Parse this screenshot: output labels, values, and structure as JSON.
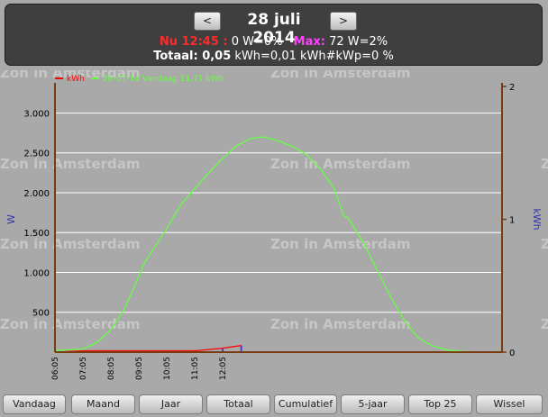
{
  "header": {
    "prev_label": "<",
    "next_label": ">",
    "date": "28 juli 2014",
    "now_label": "Nu 12:45 :",
    "now_value": "0 W=0%",
    "max_label": "Max:",
    "max_value": "72 W=2%",
    "total_label": "Totaal: 0,05",
    "total_value": "kWh=0,01 kWh#kWp=0 %"
  },
  "watermark": "Zon in Amsterdam",
  "colors": {
    "kwh_line": "#ff0000",
    "power_line": "#66ff44",
    "axis": "#7a3b10",
    "axis_label": "#3333aa",
    "gridline": "#ffffff",
    "kwh_bars": "#4444cc"
  },
  "chart_data": {
    "type": "line",
    "ylabel": "W",
    "y2label": "kWh",
    "x_ticks": [
      "06:05",
      "07:05",
      "08:05",
      "09:05",
      "10:05",
      "11:05",
      "12:05"
    ],
    "y_ticks": [
      "500",
      "1.000",
      "1.500",
      "2.000",
      "2.500",
      "3.000"
    ],
    "y2_ticks": [
      "0",
      "1",
      "2"
    ],
    "ylim": [
      0,
      3333
    ],
    "y2lim": [
      0,
      2
    ],
    "xlim": [
      "06:05",
      "22:05"
    ],
    "grid": true,
    "legend_position": "top-left",
    "series": [
      {
        "name": "kWh",
        "axis": "right",
        "x": [
          "06:05",
          "07:05",
          "08:05",
          "09:05",
          "10:05",
          "11:05",
          "12:05",
          "12:45"
        ],
        "values": [
          0.0,
          0.01,
          0.01,
          0.01,
          0.01,
          0.01,
          0.03,
          0.05
        ]
      },
      {
        "name": "26-07-14 Vandaag 11,71 kWh",
        "axis": "left",
        "x": [
          "06:05",
          "07:05",
          "07:35",
          "08:05",
          "08:35",
          "09:05",
          "09:15",
          "09:35",
          "10:05",
          "10:35",
          "11:05",
          "11:35",
          "12:05",
          "12:35",
          "13:05",
          "13:35",
          "14:05",
          "14:35",
          "15:05",
          "15:35",
          "16:05",
          "16:25",
          "16:35",
          "17:05",
          "17:35",
          "18:05",
          "18:35",
          "19:05",
          "19:35",
          "20:05",
          "20:35",
          "21:05",
          "21:35",
          "22:05"
        ],
        "values": [
          20,
          40,
          120,
          280,
          550,
          950,
          1100,
          1280,
          1550,
          1850,
          2050,
          2250,
          2430,
          2590,
          2680,
          2700,
          2650,
          2580,
          2480,
          2300,
          2050,
          1710,
          1680,
          1400,
          1050,
          700,
          400,
          180,
          80,
          30,
          10,
          0,
          0,
          0
        ]
      }
    ]
  },
  "footer": {
    "buttons": [
      "Vandaag",
      "Maand",
      "Jaar",
      "Totaal",
      "Cumulatief",
      "5-jaar",
      "Top 25",
      "Wissel"
    ]
  }
}
